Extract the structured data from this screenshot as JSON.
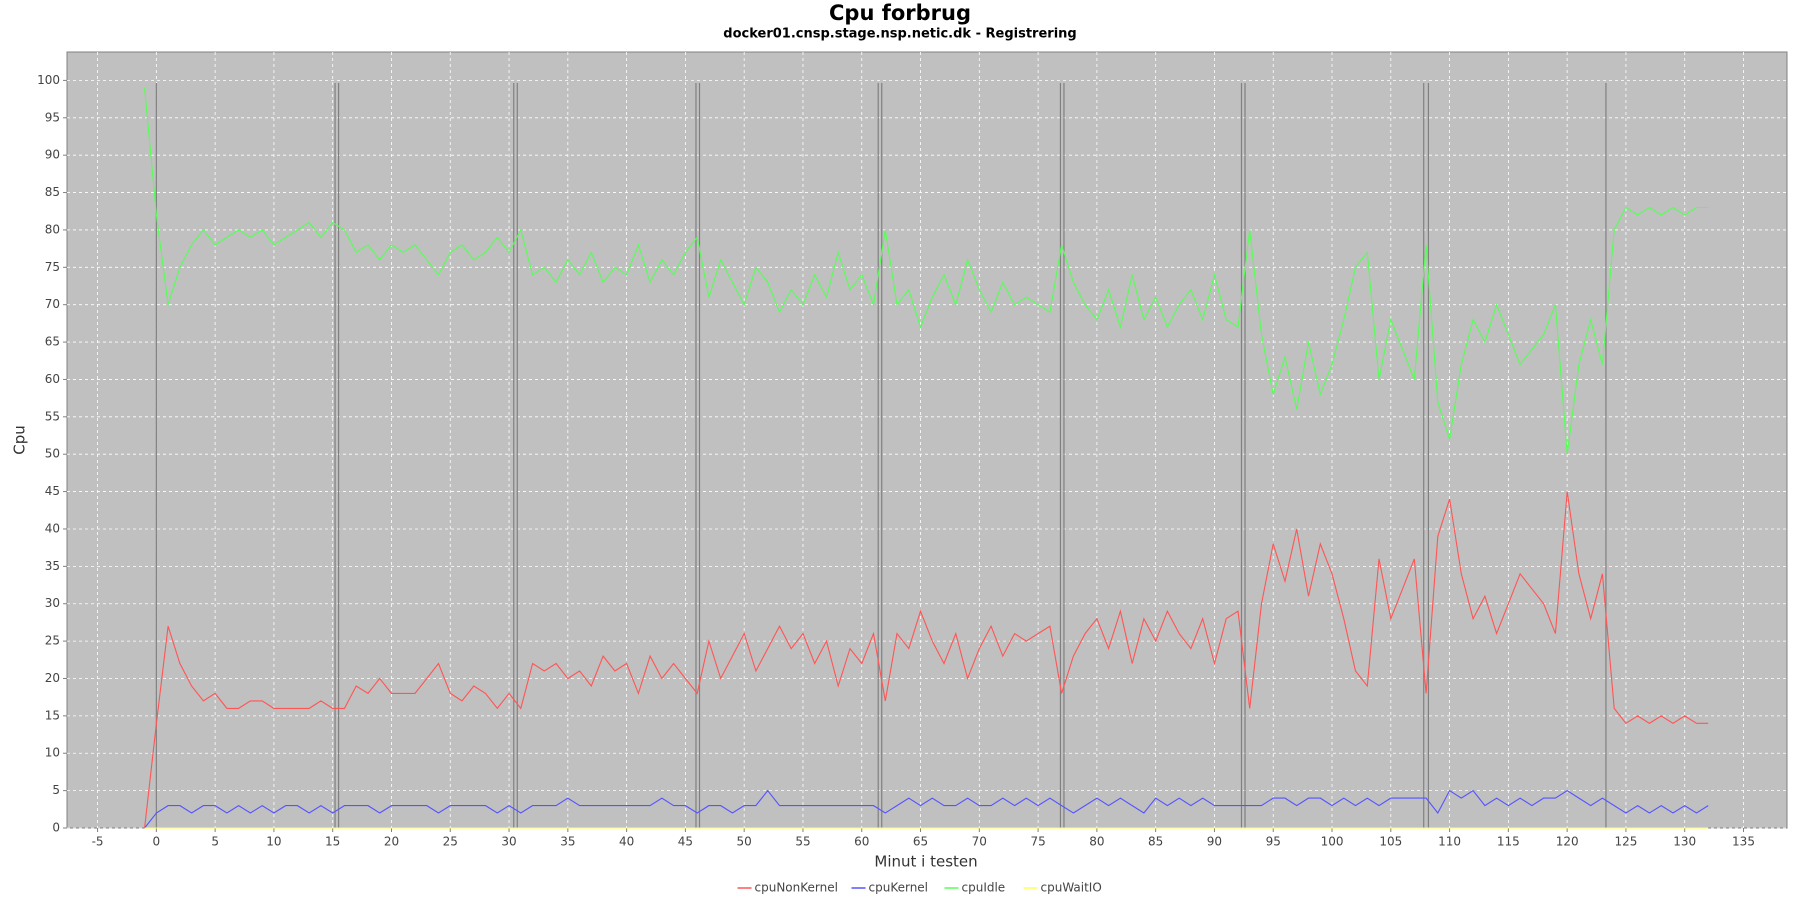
{
  "chart_data": {
    "type": "line",
    "title": "Cpu forbrug",
    "subtitle": "docker01.cnsp.stage.nsp.netic.dk - Registrering",
    "x_label": "Minut i testen",
    "y_label": "Cpu",
    "xlim": [
      -7.6,
      138.7
    ],
    "ylim": [
      0,
      103.8
    ],
    "xticks": [
      -5,
      0,
      5,
      10,
      15,
      20,
      25,
      30,
      35,
      40,
      45,
      50,
      55,
      60,
      65,
      70,
      75,
      80,
      85,
      90,
      95,
      100,
      105,
      110,
      115,
      120,
      125,
      130,
      135
    ],
    "yticks": [
      0,
      5,
      10,
      15,
      20,
      25,
      30,
      35,
      40,
      45,
      50,
      55,
      60,
      65,
      70,
      75,
      80,
      85,
      90,
      95,
      100
    ],
    "grid": true,
    "legend": "bottom",
    "event_lines": [
      0,
      15.2,
      15.5,
      30.4,
      30.7,
      45.9,
      46.2,
      61.4,
      61.7,
      76.9,
      77.2,
      92.3,
      92.6,
      107.8,
      108.2,
      123.3
    ],
    "event_line_color": "#808080",
    "x": [
      -1,
      0,
      1,
      2,
      3,
      4,
      5,
      6,
      7,
      8,
      9,
      10,
      11,
      12,
      13,
      14,
      15,
      16,
      17,
      18,
      19,
      20,
      21,
      22,
      23,
      24,
      25,
      26,
      27,
      28,
      29,
      30,
      31,
      32,
      33,
      34,
      35,
      36,
      37,
      38,
      39,
      40,
      41,
      42,
      43,
      44,
      45,
      46,
      47,
      48,
      49,
      50,
      51,
      52,
      53,
      54,
      55,
      56,
      57,
      58,
      59,
      60,
      61,
      62,
      63,
      64,
      65,
      66,
      67,
      68,
      69,
      70,
      71,
      72,
      73,
      74,
      75,
      76,
      77,
      78,
      79,
      80,
      81,
      82,
      83,
      84,
      85,
      86,
      87,
      88,
      89,
      90,
      91,
      92,
      93,
      94,
      95,
      96,
      97,
      98,
      99,
      100,
      101,
      102,
      103,
      104,
      105,
      106,
      107,
      108,
      109,
      110,
      111,
      112,
      113,
      114,
      115,
      116,
      117,
      118,
      119,
      120,
      121,
      122,
      123,
      124,
      125,
      126,
      127,
      128,
      129,
      130,
      131,
      132
    ],
    "series": [
      {
        "name": "cpuNonKernel",
        "color": "#ff5555",
        "values": [
          0,
          14,
          27,
          22,
          19,
          17,
          18,
          16,
          16,
          17,
          17,
          16,
          16,
          16,
          16,
          17,
          16,
          16,
          19,
          18,
          20,
          18,
          18,
          18,
          20,
          22,
          18,
          17,
          19,
          18,
          16,
          18,
          16,
          22,
          21,
          22,
          20,
          21,
          19,
          23,
          21,
          22,
          18,
          23,
          20,
          22,
          20,
          18,
          25,
          20,
          23,
          26,
          21,
          24,
          27,
          24,
          26,
          22,
          25,
          19,
          24,
          22,
          26,
          17,
          26,
          24,
          29,
          25,
          22,
          26,
          20,
          24,
          27,
          23,
          26,
          25,
          26,
          27,
          18,
          23,
          26,
          28,
          24,
          29,
          22,
          28,
          25,
          29,
          26,
          24,
          28,
          22,
          28,
          29,
          16,
          30,
          38,
          33,
          40,
          31,
          38,
          34,
          28,
          21,
          19,
          36,
          28,
          32,
          36,
          18,
          39,
          44,
          34,
          28,
          31,
          26,
          30,
          34,
          32,
          30,
          26,
          45,
          34,
          28,
          34,
          16,
          14,
          15,
          14,
          15,
          14,
          15,
          14,
          14
        ]
      },
      {
        "name": "cpuKernel",
        "color": "#5555ff",
        "values": [
          0,
          2,
          3,
          3,
          2,
          3,
          3,
          2,
          3,
          2,
          3,
          2,
          3,
          3,
          2,
          3,
          2,
          3,
          3,
          3,
          2,
          3,
          3,
          3,
          3,
          2,
          3,
          3,
          3,
          3,
          2,
          3,
          2,
          3,
          3,
          3,
          4,
          3,
          3,
          3,
          3,
          3,
          3,
          3,
          4,
          3,
          3,
          2,
          3,
          3,
          2,
          3,
          3,
          5,
          3,
          3,
          3,
          3,
          3,
          3,
          3,
          3,
          3,
          2,
          3,
          4,
          3,
          4,
          3,
          3,
          4,
          3,
          3,
          4,
          3,
          4,
          3,
          4,
          3,
          2,
          3,
          4,
          3,
          4,
          3,
          2,
          4,
          3,
          4,
          3,
          4,
          3,
          3,
          3,
          3,
          3,
          4,
          4,
          3,
          4,
          4,
          3,
          4,
          3,
          4,
          3,
          4,
          4,
          4,
          4,
          2,
          5,
          4,
          5,
          3,
          4,
          3,
          4,
          3,
          4,
          4,
          5,
          4,
          3,
          4,
          3,
          2,
          3,
          2,
          3,
          2,
          3,
          2,
          3
        ]
      },
      {
        "name": "cpuIdle",
        "color": "#55ff55",
        "values": [
          99,
          82,
          70,
          75,
          78,
          80,
          78,
          79,
          80,
          79,
          80,
          78,
          79,
          80,
          81,
          79,
          81,
          80,
          77,
          78,
          76,
          78,
          77,
          78,
          76,
          74,
          77,
          78,
          76,
          77,
          79,
          77,
          80,
          74,
          75,
          73,
          76,
          74,
          77,
          73,
          75,
          74,
          78,
          73,
          76,
          74,
          77,
          79,
          71,
          76,
          73,
          70,
          75,
          73,
          69,
          72,
          70,
          74,
          71,
          77,
          72,
          74,
          70,
          80,
          70,
          72,
          67,
          71,
          74,
          70,
          76,
          72,
          69,
          73,
          70,
          71,
          70,
          69,
          78,
          73,
          70,
          68,
          72,
          67,
          74,
          68,
          71,
          67,
          70,
          72,
          68,
          74,
          68,
          67,
          80,
          66,
          58,
          63,
          56,
          65,
          58,
          62,
          68,
          75,
          77,
          60,
          68,
          64,
          60,
          78,
          57,
          52,
          62,
          68,
          65,
          70,
          66,
          62,
          64,
          66,
          70,
          50,
          62,
          68,
          62,
          80,
          83,
          82,
          83,
          82,
          83,
          82,
          83,
          83
        ]
      },
      {
        "name": "cpuWaitIO",
        "color": "#ffff55",
        "values": [
          0,
          0,
          0,
          0,
          0,
          0,
          0,
          0,
          0,
          0,
          0,
          0,
          0,
          0,
          0,
          0,
          0,
          0,
          0,
          0,
          0,
          0,
          0,
          0,
          0,
          0,
          0,
          0,
          0,
          0,
          0,
          0,
          0,
          0,
          0,
          0,
          0,
          0,
          0,
          0,
          0,
          0,
          0,
          0,
          0,
          0,
          0,
          0,
          0,
          0,
          0,
          0,
          0,
          0,
          0,
          0,
          0,
          0,
          0,
          0,
          0,
          0,
          0,
          0,
          0,
          0,
          0,
          0,
          0,
          0,
          0,
          0,
          0,
          0,
          0,
          0,
          0,
          0,
          0,
          0,
          0,
          0,
          0,
          0,
          0,
          0,
          0,
          0,
          0,
          0,
          0,
          0,
          0,
          0,
          0,
          0,
          0,
          0,
          0,
          0,
          0,
          0,
          0,
          0,
          0,
          0,
          0,
          0,
          0,
          0,
          0,
          0,
          0,
          0,
          0,
          0,
          0,
          0,
          0,
          0,
          0,
          0,
          0,
          0,
          0,
          0,
          0,
          0,
          0,
          0,
          0,
          0,
          0,
          0
        ]
      }
    ]
  }
}
